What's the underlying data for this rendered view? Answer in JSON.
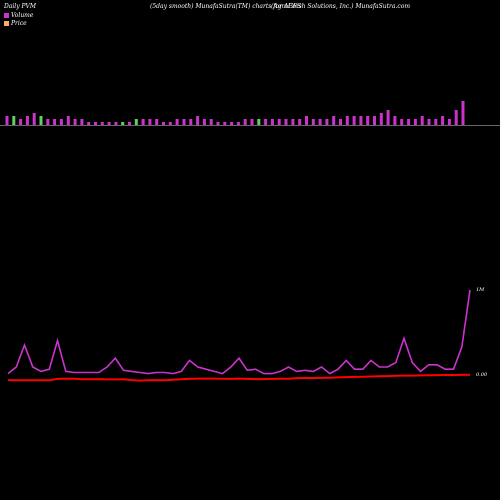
{
  "header": {
    "left": "Daily PVM",
    "center": "(5day smooth) MunafaSutra(TM) charts for AGFS",
    "right": "(AgroFresh Solutions, Inc.) MunafaSutra.com"
  },
  "legend": {
    "volume_label": "Volume",
    "price_label": "Price",
    "volume_color": "#cc33cc",
    "price_color": "#ffaa66"
  },
  "chart_data": {
    "type": "line",
    "title": "(5day smooth) MunafaSutra(TM) charts for AGFS",
    "volume_bars": [
      3,
      3,
      2,
      3,
      4,
      3,
      2,
      2,
      2,
      3,
      2,
      2,
      1,
      1,
      1,
      1,
      1,
      1,
      1,
      2,
      2,
      2,
      2,
      1,
      1,
      2,
      2,
      2,
      3,
      2,
      2,
      1,
      1,
      1,
      1,
      2,
      2,
      2,
      2,
      2,
      2,
      2,
      2,
      2,
      3,
      2,
      2,
      2,
      3,
      2,
      3,
      3,
      3,
      3,
      3,
      4,
      5,
      3,
      2,
      2,
      2,
      3,
      2,
      2,
      3,
      2,
      5,
      8
    ],
    "volume_bar_colors": [
      "#cc33cc",
      "#66cc66",
      "#cc33cc",
      "#cc33cc",
      "#cc33cc",
      "#66cc66",
      "#cc33cc",
      "#cc33cc",
      "#cc33cc",
      "#cc33cc",
      "#cc33cc",
      "#cc33cc",
      "#cc33cc",
      "#cc33cc",
      "#cc33cc",
      "#cc33cc",
      "#cc33cc",
      "#66cc66",
      "#cc33cc",
      "#66cc66",
      "#cc33cc",
      "#cc33cc",
      "#cc33cc",
      "#cc33cc",
      "#cc33cc",
      "#cc33cc",
      "#cc33cc",
      "#cc33cc",
      "#cc33cc",
      "#cc33cc",
      "#cc33cc",
      "#cc33cc",
      "#cc33cc",
      "#cc33cc",
      "#cc33cc",
      "#cc33cc",
      "#cc33cc",
      "#66cc66",
      "#cc33cc",
      "#cc33cc",
      "#cc33cc",
      "#cc33cc",
      "#cc33cc",
      "#cc33cc",
      "#cc33cc",
      "#cc33cc",
      "#cc33cc",
      "#cc33cc",
      "#cc33cc",
      "#cc33cc",
      "#cc33cc",
      "#cc33cc",
      "#cc33cc",
      "#cc33cc",
      "#cc33cc",
      "#cc33cc",
      "#cc33cc",
      "#cc33cc",
      "#cc33cc",
      "#cc33cc",
      "#cc33cc",
      "#cc33cc",
      "#cc33cc",
      "#cc33cc",
      "#cc33cc",
      "#cc33cc",
      "#cc33cc",
      "#cc33cc"
    ],
    "volume_line": [
      4,
      10,
      30,
      10,
      6,
      8,
      34,
      6,
      5,
      5,
      5,
      5,
      10,
      18,
      7,
      6,
      5,
      4,
      5,
      5,
      4,
      6,
      16,
      10,
      8,
      6,
      4,
      10,
      18,
      7,
      8,
      4,
      4,
      6,
      10,
      6,
      7,
      6,
      10,
      4,
      8,
      16,
      8,
      8,
      16,
      10,
      10,
      14,
      36,
      14,
      6,
      12,
      12,
      8,
      8,
      28,
      80
    ],
    "price_line": [
      0.6,
      0.5,
      0.5,
      0.5,
      0.5,
      0.5,
      1.4,
      1.6,
      1.5,
      1.2,
      1.2,
      1.3,
      1.1,
      1.1,
      1.2,
      0.6,
      0.3,
      0.5,
      0.6,
      0.5,
      0.8,
      1.2,
      1.4,
      1.6,
      1.6,
      1.6,
      1.5,
      1.4,
      1.6,
      1.4,
      1.3,
      1.3,
      1.4,
      1.5,
      1.5,
      1.9,
      2.0,
      2.0,
      2.1,
      2.2,
      2.4,
      2.6,
      2.7,
      2.8,
      3.0,
      3.2,
      3.3,
      3.5,
      3.6,
      3.6,
      3.7,
      3.8,
      3.9,
      4.0,
      4.0,
      4.1,
      4.2
    ],
    "right_axis_labels": [
      "1M",
      "0.00"
    ]
  }
}
